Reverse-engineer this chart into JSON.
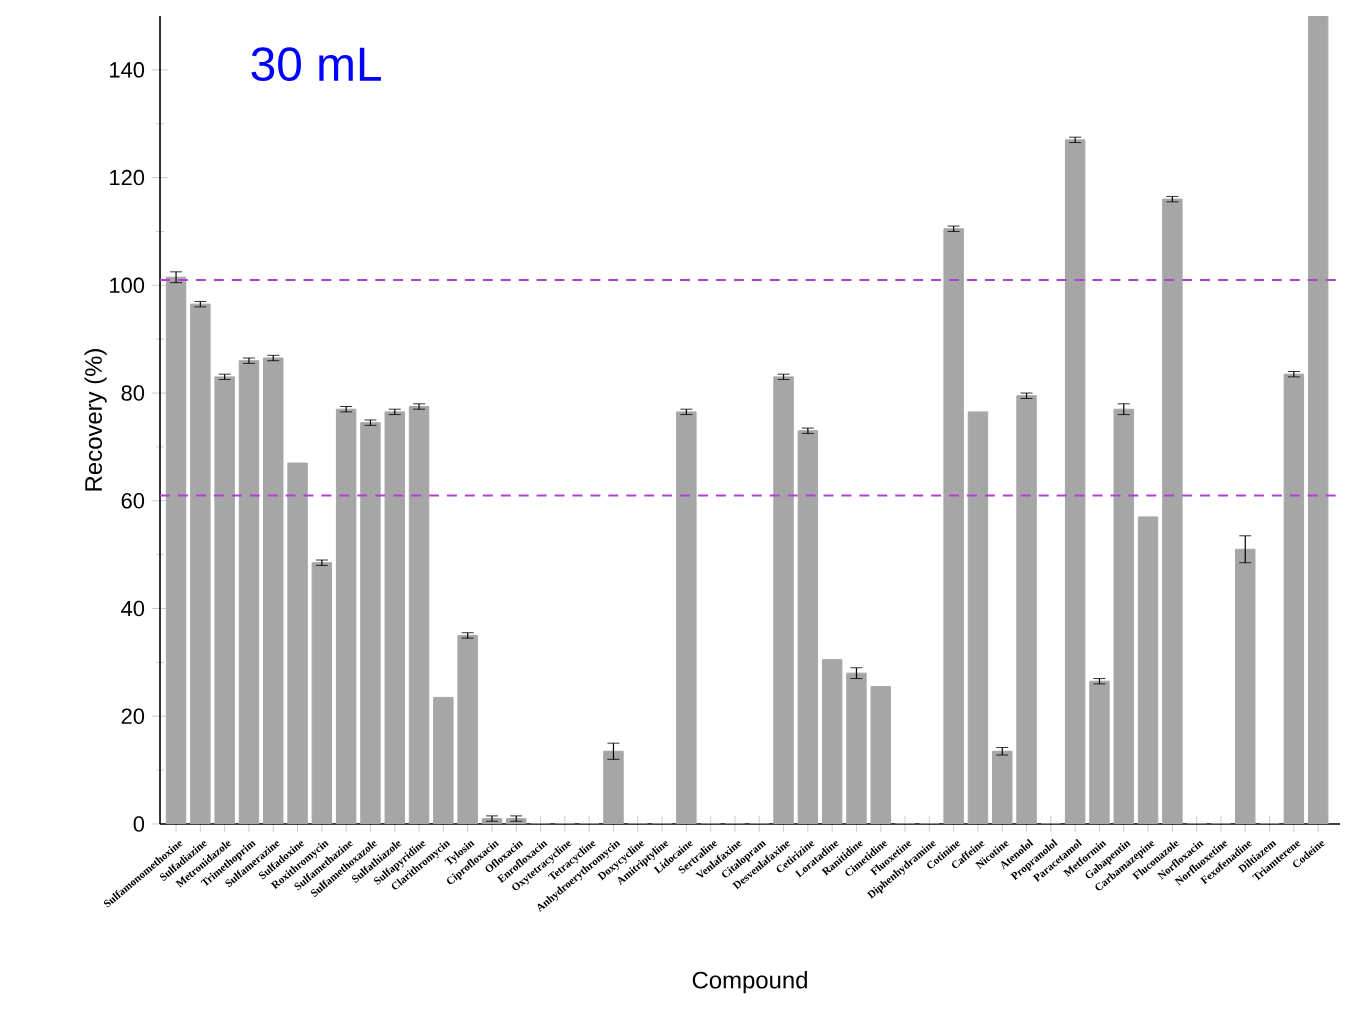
{
  "chart_data": {
    "type": "bar",
    "xlabel": "Compound",
    "ylabel": "Recovery (%)",
    "annotations": [
      "30 mL"
    ],
    "categories": [
      "Sulfamonomethoxine",
      "Sulfadiazine",
      "Metronidazole",
      "Trimethoprim",
      "Sulfamerazine",
      "Sulfadoxine",
      "Roxithromycin",
      "Sulfamethazine",
      "Sulfamethoxazole",
      "Sulfathiazole",
      "Sulfapyridine",
      "Clarithromycin",
      "Tylosin",
      "Ciprofloxacin",
      "Ofloxacin",
      "Enrofloxacin",
      "Oxytetracycline",
      "Tetracycline",
      "Anhydroerythromycin",
      "Doxycycline",
      "Amitriptyline",
      "Lidocaine",
      "Sertraline",
      "Venlafaxine",
      "Citalopram",
      "Desvenlafaxine",
      "Cetirizine",
      "Loratadine",
      "Ranitidine",
      "Cimetidine",
      "Fluoxetine",
      "Diphenhydramine",
      "Cotinine",
      "Caffeine",
      "Nicotine",
      "Atenolol",
      "Propranolol",
      "Paracetamol",
      "Metformin",
      "Gabapentin",
      "Carbamazepine",
      "Fluconazole",
      "Norfloxacin",
      "Norfluoxetine",
      "Fexofenadine",
      "Diltiazem",
      "Triamterene",
      "Codeine"
    ],
    "values": [
      101.5,
      96.5,
      83,
      86,
      86.5,
      67,
      48.5,
      77,
      74.5,
      76.5,
      77.5,
      23.5,
      35,
      1,
      1,
      0,
      0,
      0,
      13.5,
      0,
      0,
      76.5,
      0,
      0,
      0,
      83,
      73,
      30.5,
      28,
      25.5,
      0,
      0,
      110.5,
      76.5,
      13.5,
      79.5,
      0,
      127,
      26.5,
      77,
      57,
      116,
      0,
      0,
      51,
      0,
      83.5,
      150
    ],
    "errors": [
      1,
      0.5,
      0.5,
      0.5,
      0.5,
      null,
      0.5,
      0.5,
      0.5,
      0.5,
      0.5,
      null,
      0.5,
      0.5,
      0.5,
      null,
      null,
      null,
      1.5,
      null,
      null,
      0.5,
      null,
      null,
      null,
      0.5,
      0.5,
      null,
      1,
      null,
      null,
      null,
      0.5,
      null,
      0.7,
      0.5,
      null,
      0.5,
      0.5,
      1,
      null,
      0.5,
      null,
      null,
      2.5,
      null,
      0.5,
      null
    ],
    "color": "#a6a6a6",
    "ylim": [
      0,
      150
    ],
    "yticks": [
      0,
      20,
      40,
      60,
      80,
      100,
      120,
      140
    ],
    "ref_lines": [
      {
        "axis": "y",
        "value": 101,
        "color": "#b040d0",
        "line_style": "dashed"
      },
      {
        "axis": "y",
        "value": 61,
        "color": "#b040d0",
        "line_style": "dashed"
      }
    ]
  }
}
